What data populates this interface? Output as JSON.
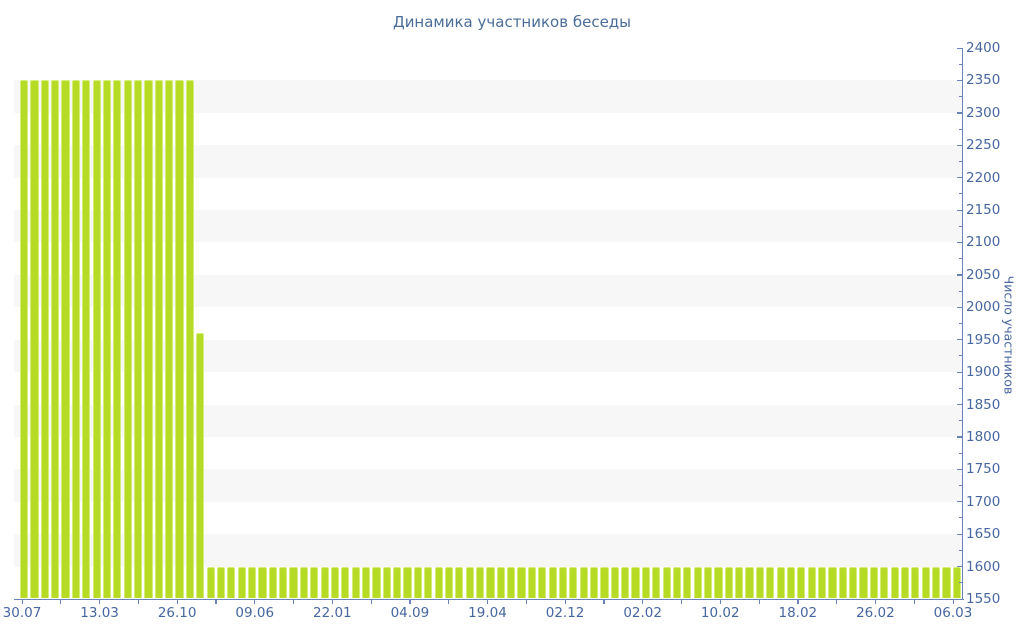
{
  "chart_data": {
    "type": "bar",
    "title": "Динамика участников беседы",
    "ylabel": "Число участников",
    "xlabel": "",
    "ylim": [
      1550,
      2400
    ],
    "y_tick_step": 50,
    "y_minor_tick_step": 25,
    "grid": "alternating horizontal bands every 50 units, no gridlines, legend off, y-axis on right",
    "x_tick_labels": [
      "30.07",
      "13.03",
      "26.10",
      "09.06",
      "22.01",
      "04.09",
      "19.04",
      "02.12",
      "02.02",
      "10.02",
      "18.02",
      "26.02",
      "06.03"
    ],
    "values": [
      2350,
      2350,
      2350,
      2350,
      2350,
      2350,
      2350,
      2350,
      2350,
      2350,
      2350,
      2350,
      2350,
      2350,
      2350,
      2350,
      2350,
      1960,
      1600,
      1600,
      1600,
      1600,
      1600,
      1600,
      1600,
      1600,
      1600,
      1600,
      1600,
      1600,
      1600,
      1600,
      1600,
      1600,
      1600,
      1600,
      1600,
      1600,
      1600,
      1600,
      1600,
      1600,
      1600,
      1600,
      1600,
      1600,
      1600,
      1600,
      1600,
      1600,
      1600,
      1600,
      1600,
      1600,
      1600,
      1600,
      1600,
      1600,
      1600,
      1600,
      1600,
      1600,
      1600,
      1600,
      1600,
      1600,
      1600,
      1600,
      1600,
      1600,
      1600,
      1600,
      1600,
      1600,
      1600,
      1600,
      1600,
      1600,
      1600,
      1600,
      1600,
      1600,
      1600,
      1600,
      1600,
      1600,
      1600,
      1600,
      1600,
      1600,
      1600
    ],
    "colors": {
      "background": "#ffffff",
      "band": "#f7f7f7",
      "bar": "#b5db25",
      "bar_edge": "#d4ec78",
      "axis": "#6a84ba",
      "text": "#4767a1",
      "title": "#4a6d99"
    }
  }
}
